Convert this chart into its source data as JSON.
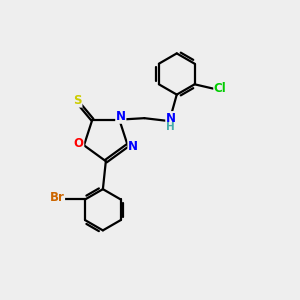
{
  "background_color": "#eeeeee",
  "bond_color": "#000000",
  "atom_colors": {
    "S": "#cccc00",
    "O": "#ff0000",
    "N": "#0000ff",
    "Cl": "#00cc00",
    "Br": "#cc6600",
    "H": "#44aaaa",
    "C": "#000000"
  },
  "figsize": [
    3.0,
    3.0
  ],
  "dpi": 100
}
